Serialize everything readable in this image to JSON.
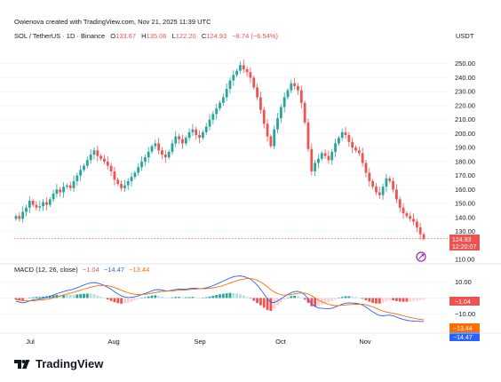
{
  "header": {
    "credit": "Owienova created with TradingView.com, Nov 21, 2025 11:39 UTC",
    "symbol": "SOL / TetherUS · 1D · Binance",
    "o_label": "O",
    "o_value": "133.67",
    "h_label": "H",
    "h_value": "135.06",
    "l_label": "L",
    "l_value": "122.20",
    "c_label": "C",
    "c_value": "124.93",
    "change": "−8.74 (−6.54%)",
    "currency": "USDT"
  },
  "price_badge": {
    "value": "124.93",
    "countdown": "12:20:07"
  },
  "macd_header": {
    "label": "MACD (12, 26, close)",
    "hist": "−1.04",
    "macd": "−14.47",
    "signal": "−13.44"
  },
  "macd_badges": {
    "hist": "−1.04",
    "signal": "−13.44",
    "macd": "−14.47"
  },
  "brand": {
    "name": "TradingView"
  },
  "colors": {
    "up": "#26a69a",
    "down": "#ef5350",
    "macd_line": "#2962ff",
    "signal_line": "#ff6d00",
    "hist_up": "#26a69a",
    "hist_down": "#ef5350",
    "hist_up_light": "#b2dfdb",
    "hist_down_light": "#ffcdd2",
    "grid": "#f0f3fa",
    "axis_text": "#131722"
  },
  "chart_data": {
    "type": "candlestick",
    "price_axis": {
      "ticks": [
        "250.00",
        "240.00",
        "230.00",
        "220.00",
        "210.00",
        "200.00",
        "190.00",
        "180.00",
        "170.00",
        "160.00",
        "150.00",
        "140.00",
        "130.00",
        "110.00"
      ],
      "ylim": [
        110,
        260
      ]
    },
    "macd_axis": {
      "ticks": [
        "10.00",
        "0.00",
        "−10.00"
      ],
      "ylim": [
        -19,
        14
      ]
    },
    "time_axis": {
      "ticks": [
        "Jul",
        "Aug",
        "Sep",
        "Oct",
        "Nov"
      ]
    },
    "closes": [
      141,
      139,
      144,
      147,
      152,
      149,
      147,
      148,
      151,
      149,
      153,
      157,
      160,
      158,
      162,
      163,
      161,
      166,
      170,
      174,
      177,
      181,
      185,
      188,
      184,
      182,
      180,
      177,
      173,
      167,
      164,
      161,
      163,
      166,
      169,
      172,
      176,
      180,
      183,
      187,
      191,
      193,
      188,
      185,
      183,
      187,
      193,
      198,
      196,
      193,
      197,
      201,
      203,
      199,
      197,
      201,
      205,
      210,
      214,
      218,
      222,
      226,
      232,
      238,
      242,
      245,
      249,
      246,
      244,
      240,
      233,
      226,
      217,
      207,
      198,
      191,
      203,
      211,
      219,
      226,
      231,
      236,
      234,
      231,
      222,
      208,
      189,
      173,
      179,
      182,
      186,
      184,
      181,
      187,
      193,
      197,
      201,
      199,
      194,
      190,
      188,
      186,
      179,
      172,
      166,
      162,
      158,
      156,
      162,
      168,
      166,
      160,
      153,
      147,
      143,
      141,
      139,
      137,
      133,
      128,
      124.93
    ],
    "macd": [
      -2,
      -2.5,
      -3,
      -2.6,
      -1.8,
      -1.2,
      -0.8,
      -0.6,
      -0.2,
      0.3,
      1,
      1.8,
      2.7,
      3.3,
      4,
      4.6,
      5,
      5.6,
      6.4,
      7.2,
      8.1,
      8.8,
      9.4,
      9.6,
      9.2,
      8.6,
      7.8,
      6.7,
      5.4,
      3.9,
      2.5,
      1.3,
      0.6,
      0.3,
      0.4,
      0.8,
      1.4,
      2.1,
      2.8,
      3.6,
      4.5,
      5.1,
      5.2,
      4.9,
      4.5,
      4.4,
      4.8,
      5.3,
      5.5,
      5.4,
      5.5,
      5.8,
      6.1,
      6,
      5.8,
      5.9,
      6.3,
      6.9,
      7.7,
      8.6,
      9.5,
      10.4,
      11.4,
      12.4,
      13.1,
      13.5,
      13.7,
      13.3,
      12.7,
      11.7,
      10,
      7.9,
      5.4,
      2.5,
      -0.5,
      -2.9,
      -2.8,
      -1.8,
      -0.5,
      0.9,
      2.2,
      3.4,
      4,
      4.1,
      3.5,
      2,
      -0.6,
      -3.7,
      -5.2,
      -6.2,
      -6.4,
      -6.5,
      -6.7,
      -6.3,
      -5.6,
      -4.7,
      -3.8,
      -3.2,
      -3,
      -3.1,
      -3.3,
      -3.6,
      -4.4,
      -5.6,
      -7.1,
      -8.5,
      -9.8,
      -10.8,
      -11,
      -10.7,
      -10.6,
      -11,
      -11.8,
      -12.6,
      -13.3,
      -13.8,
      -14.1,
      -14.3,
      -14.4,
      -14.5,
      -14.47
    ],
    "signal": [
      -1,
      -1.3,
      -1.6,
      -1.8,
      -1.8,
      -1.7,
      -1.5,
      -1.3,
      -1.1,
      -0.8,
      -0.4,
      0.1,
      0.7,
      1.3,
      1.9,
      2.5,
      3,
      3.6,
      4.2,
      4.8,
      5.5,
      6.1,
      6.7,
      7.2,
      7.6,
      7.8,
      7.8,
      7.6,
      7.2,
      6.5,
      5.7,
      4.8,
      4,
      3.3,
      2.7,
      2.3,
      2.1,
      2.1,
      2.3,
      2.6,
      3,
      3.4,
      3.8,
      4.1,
      4.2,
      4.3,
      4.4,
      4.6,
      4.8,
      4.9,
      5,
      5.2,
      5.4,
      5.6,
      5.7,
      5.7,
      5.8,
      6,
      6.3,
      6.7,
      7.2,
      7.8,
      8.5,
      9.2,
      10,
      10.7,
      11.3,
      11.7,
      12,
      12,
      11.7,
      11,
      9.9,
      8.5,
      6.9,
      5.1,
      3.7,
      2.7,
      2,
      1.8,
      1.9,
      2.2,
      2.6,
      2.9,
      3.1,
      3,
      2.4,
      1.4,
      0.1,
      -1.2,
      -2.3,
      -3.2,
      -3.9,
      -4.4,
      -4.7,
      -4.7,
      -4.5,
      -4.3,
      -4.1,
      -4,
      -3.9,
      -3.8,
      -3.9,
      -4.2,
      -4.8,
      -5.5,
      -6.4,
      -7.3,
      -8.1,
      -8.7,
      -9.1,
      -9.5,
      -9.9,
      -10.4,
      -11,
      -11.5,
      -12,
      -12.5,
      -12.9,
      -13.2,
      -13.44
    ]
  }
}
